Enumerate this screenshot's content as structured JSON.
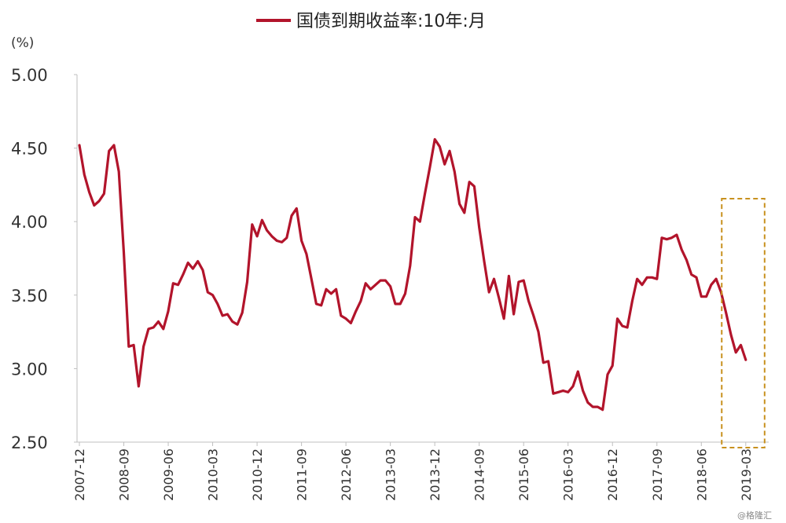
{
  "chart_data": {
    "type": "line",
    "title": "",
    "ylabel": "(%)",
    "xlabel": "",
    "ylim": [
      2.5,
      5.0
    ],
    "yticks": [
      "2.50",
      "3.00",
      "3.50",
      "4.00",
      "4.50",
      "5.00"
    ],
    "xticks": [
      "2007-12",
      "2008-09",
      "2009-06",
      "2010-03",
      "2010-12",
      "2011-09",
      "2012-06",
      "2013-03",
      "2013-12",
      "2014-09",
      "2015-06",
      "2016-03",
      "2016-12",
      "2017-09",
      "2018-06",
      "2019-03"
    ],
    "legend": "top-center",
    "grid": false,
    "series": [
      {
        "name": "国债到期收益率:10年:月",
        "color": "#B2142B",
        "x": [
          "2007-12",
          "2008-01",
          "2008-02",
          "2008-03",
          "2008-04",
          "2008-05",
          "2008-06",
          "2008-07",
          "2008-08",
          "2008-09",
          "2008-10",
          "2008-11",
          "2008-12",
          "2009-01",
          "2009-02",
          "2009-03",
          "2009-04",
          "2009-05",
          "2009-06",
          "2009-07",
          "2009-08",
          "2009-09",
          "2009-10",
          "2009-11",
          "2009-12",
          "2010-01",
          "2010-02",
          "2010-03",
          "2010-04",
          "2010-05",
          "2010-06",
          "2010-07",
          "2010-08",
          "2010-09",
          "2010-10",
          "2010-11",
          "2010-12",
          "2011-01",
          "2011-02",
          "2011-03",
          "2011-04",
          "2011-05",
          "2011-06",
          "2011-07",
          "2011-08",
          "2011-09",
          "2011-10",
          "2011-11",
          "2011-12",
          "2012-01",
          "2012-02",
          "2012-03",
          "2012-04",
          "2012-05",
          "2012-06",
          "2012-07",
          "2012-08",
          "2012-09",
          "2012-10",
          "2012-11",
          "2012-12",
          "2013-01",
          "2013-02",
          "2013-03",
          "2013-04",
          "2013-05",
          "2013-06",
          "2013-07",
          "2013-08",
          "2013-09",
          "2013-10",
          "2013-11",
          "2013-12",
          "2014-01",
          "2014-02",
          "2014-03",
          "2014-04",
          "2014-05",
          "2014-06",
          "2014-07",
          "2014-08",
          "2014-09",
          "2014-10",
          "2014-11",
          "2014-12",
          "2015-01",
          "2015-02",
          "2015-03",
          "2015-04",
          "2015-05",
          "2015-06",
          "2015-07",
          "2015-08",
          "2015-09",
          "2015-10",
          "2015-11",
          "2015-12",
          "2016-01",
          "2016-02",
          "2016-03",
          "2016-04",
          "2016-05",
          "2016-06",
          "2016-07",
          "2016-08",
          "2016-09",
          "2016-10",
          "2016-11",
          "2016-12",
          "2017-01",
          "2017-02",
          "2017-03",
          "2017-04",
          "2017-05",
          "2017-06",
          "2017-07",
          "2017-08",
          "2017-09",
          "2017-10",
          "2017-11",
          "2017-12",
          "2018-01",
          "2018-02",
          "2018-03",
          "2018-04",
          "2018-05",
          "2018-06",
          "2018-07",
          "2018-08",
          "2018-09",
          "2018-10",
          "2018-11",
          "2018-12",
          "2019-01",
          "2019-02",
          "2019-03"
        ],
        "values": [
          4.52,
          4.32,
          4.2,
          4.11,
          4.14,
          4.19,
          4.48,
          4.52,
          4.34,
          3.79,
          3.15,
          3.16,
          2.88,
          3.15,
          3.27,
          3.28,
          3.32,
          3.27,
          3.39,
          3.58,
          3.57,
          3.64,
          3.72,
          3.68,
          3.73,
          3.67,
          3.52,
          3.5,
          3.44,
          3.36,
          3.37,
          3.32,
          3.3,
          3.38,
          3.59,
          3.98,
          3.9,
          4.01,
          3.94,
          3.9,
          3.87,
          3.86,
          3.89,
          4.04,
          4.09,
          3.87,
          3.78,
          3.61,
          3.44,
          3.43,
          3.54,
          3.51,
          3.54,
          3.36,
          3.34,
          3.31,
          3.39,
          3.46,
          3.58,
          3.54,
          3.57,
          3.6,
          3.6,
          3.56,
          3.44,
          3.44,
          3.51,
          3.7,
          4.03,
          4.0,
          4.19,
          4.37,
          4.56,
          4.51,
          4.39,
          4.48,
          4.34,
          4.12,
          4.06,
          4.27,
          4.24,
          3.96,
          3.73,
          3.52,
          3.61,
          3.48,
          3.34,
          3.63,
          3.37,
          3.59,
          3.6,
          3.46,
          3.36,
          3.25,
          3.04,
          3.05,
          2.83,
          2.84,
          2.85,
          2.84,
          2.88,
          2.98,
          2.85,
          2.77,
          2.74,
          2.74,
          2.72,
          2.96,
          3.02,
          3.34,
          3.29,
          3.28,
          3.46,
          3.61,
          3.57,
          3.62,
          3.62,
          3.61,
          3.89,
          3.88,
          3.89,
          3.91,
          3.81,
          3.74,
          3.64,
          3.62,
          3.49,
          3.49,
          3.57,
          3.61,
          3.52,
          3.38,
          3.23,
          3.11,
          3.16,
          3.06
        ]
      }
    ],
    "highlight": {
      "start": "2019-01",
      "end": "2019-03",
      "color": "#C8911E"
    }
  },
  "watermark": "@格隆汇"
}
